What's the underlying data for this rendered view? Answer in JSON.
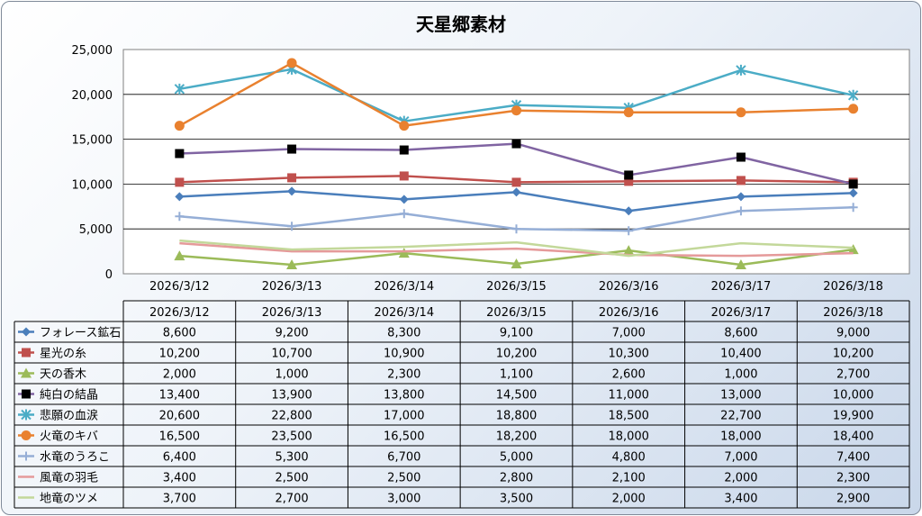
{
  "chart_data": {
    "type": "line",
    "title": "天星郷素材",
    "xlabel": "",
    "ylabel": "",
    "ylim": [
      0,
      25000
    ],
    "y_ticks": [
      "0",
      "5,000",
      "10,000",
      "15,000",
      "20,000",
      "25,000"
    ],
    "grid": true,
    "legend": "data-table",
    "categories": [
      "2026/3/12",
      "2026/3/13",
      "2026/3/14",
      "2026/3/15",
      "2026/3/16",
      "2026/3/17",
      "2026/3/18"
    ],
    "series": [
      {
        "name": "フォレース鉱石",
        "color": "#4a7ebb",
        "marker": "diamond",
        "values": [
          8600,
          9200,
          8300,
          9100,
          7000,
          8600,
          9000
        ],
        "labels": [
          "8,600",
          "9,200",
          "8,300",
          "9,100",
          "7,000",
          "8,600",
          "9,000"
        ]
      },
      {
        "name": "星光の糸",
        "color": "#c0504d",
        "marker": "square",
        "values": [
          10200,
          10700,
          10900,
          10200,
          10300,
          10400,
          10200
        ],
        "labels": [
          "10,200",
          "10,700",
          "10,900",
          "10,200",
          "10,300",
          "10,400",
          "10,200"
        ]
      },
      {
        "name": "天の香木",
        "color": "#9bbb59",
        "marker": "triangle",
        "values": [
          2000,
          1000,
          2300,
          1100,
          2600,
          1000,
          2700
        ],
        "labels": [
          "2,000",
          "1,000",
          "2,300",
          "1,100",
          "2,600",
          "1,000",
          "2,700"
        ]
      },
      {
        "name": "純白の結晶",
        "color": "#8064a2",
        "marker": "square-black",
        "values": [
          13400,
          13900,
          13800,
          14500,
          11000,
          13000,
          10000
        ],
        "labels": [
          "13,400",
          "13,900",
          "13,800",
          "14,500",
          "11,000",
          "13,000",
          "10,000"
        ]
      },
      {
        "name": "悲願の血涙",
        "color": "#4bacc6",
        "marker": "star",
        "values": [
          20600,
          22800,
          17000,
          18800,
          18500,
          22700,
          19900
        ],
        "labels": [
          "20,600",
          "22,800",
          "17,000",
          "18,800",
          "18,500",
          "22,700",
          "19,900"
        ]
      },
      {
        "name": "火竜のキバ",
        "color": "#e9812f",
        "marker": "circle",
        "values": [
          16500,
          23500,
          16500,
          18200,
          18000,
          18000,
          18400
        ],
        "labels": [
          "16,500",
          "23,500",
          "16,500",
          "18,200",
          "18,000",
          "18,000",
          "18,400"
        ]
      },
      {
        "name": "水竜のうろこ",
        "color": "#95aed6",
        "marker": "plus",
        "values": [
          6400,
          5300,
          6700,
          5000,
          4800,
          7000,
          7400
        ],
        "labels": [
          "6,400",
          "5,300",
          "6,700",
          "5,000",
          "4,800",
          "7,000",
          "7,400"
        ]
      },
      {
        "name": "風竜の羽毛",
        "color": "#e59a9a",
        "marker": "none",
        "values": [
          3400,
          2500,
          2500,
          2800,
          2100,
          2000,
          2300
        ],
        "labels": [
          "3,400",
          "2,500",
          "2,500",
          "2,800",
          "2,100",
          "2,000",
          "2,300"
        ]
      },
      {
        "name": "地竜のツメ",
        "color": "#c3d89a",
        "marker": "none",
        "values": [
          3700,
          2700,
          3000,
          3500,
          2000,
          3400,
          2900
        ],
        "labels": [
          "3,700",
          "2,700",
          "3,000",
          "3,500",
          "2,000",
          "3,400",
          "2,900"
        ]
      }
    ]
  }
}
